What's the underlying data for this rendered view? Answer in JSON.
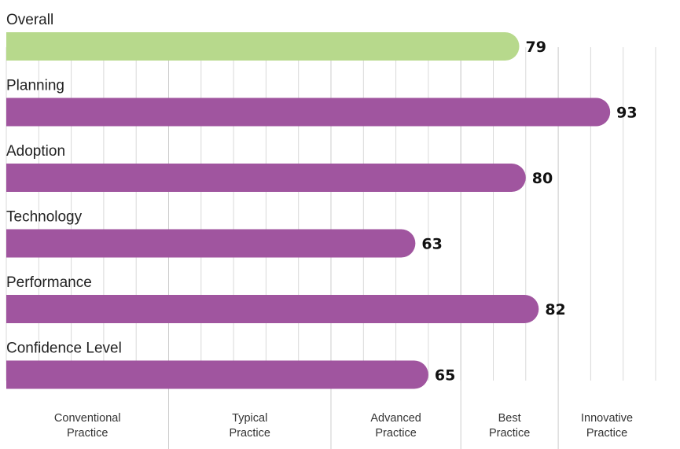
{
  "chart_data": {
    "type": "bar",
    "orientation": "horizontal",
    "categories": [
      "Overall",
      "Planning",
      "Adoption",
      "Technology",
      "Performance",
      "Confidence Level"
    ],
    "values": [
      79,
      93,
      80,
      63,
      82,
      65
    ],
    "xlim": [
      0,
      100
    ],
    "grid": true,
    "bands": [
      {
        "label": [
          "Conventional",
          "Practice"
        ],
        "from": 0,
        "to": 25
      },
      {
        "label": [
          "Typical",
          "Practice"
        ],
        "from": 25,
        "to": 50
      },
      {
        "label": [
          "Advanced",
          "Practice"
        ],
        "from": 50,
        "to": 70
      },
      {
        "label": [
          "Best",
          "Practice"
        ],
        "from": 70,
        "to": 85
      },
      {
        "label": [
          "Innovative",
          "Practice"
        ],
        "from": 85,
        "to": 100
      }
    ],
    "colors": {
      "highlight": "#b7d98c",
      "bar": "#a0559f",
      "grid": "#d9d9d9"
    },
    "highlight_category": "Overall"
  }
}
